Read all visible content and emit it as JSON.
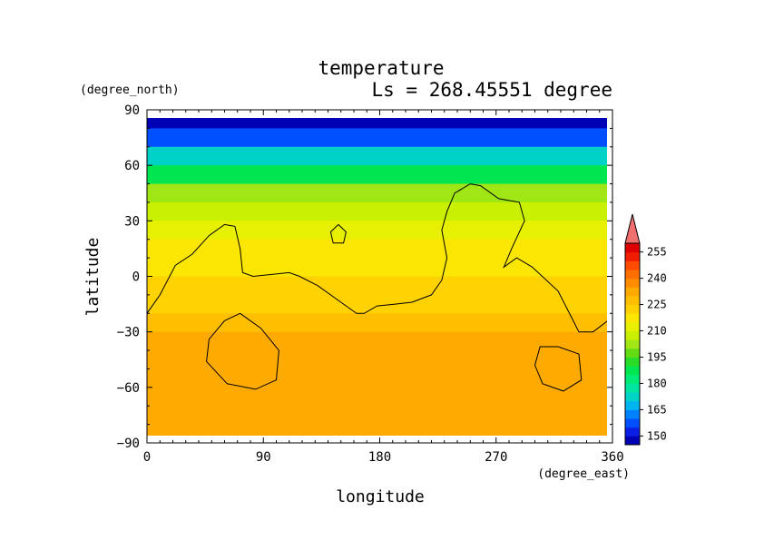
{
  "chart_data": {
    "type": "heatmap",
    "title": "temperature",
    "subtitle": "Ls = 268.45551 degree",
    "xlabel": "longitude",
    "ylabel": "latitude",
    "x_units": "(degree_east)",
    "y_units": "(degree_north)",
    "xlim": [
      0,
      360
    ],
    "ylim": [
      -90,
      90
    ],
    "x_ticks": [
      "0",
      "90",
      "180",
      "270",
      "360"
    ],
    "y_ticks": [
      "90",
      "60",
      "30",
      "0",
      "−30",
      "−60",
      "−90"
    ],
    "x_tick_values": [
      0,
      90,
      180,
      270,
      360
    ],
    "y_tick_values": [
      90,
      60,
      30,
      0,
      -30,
      -60,
      -90
    ],
    "colorbar": {
      "levels": [
        145,
        150,
        155,
        160,
        165,
        170,
        175,
        180,
        185,
        190,
        195,
        200,
        205,
        210,
        215,
        220,
        225,
        230,
        235,
        240,
        245,
        250,
        255,
        260
      ],
      "labels": [
        "150",
        "165",
        "180",
        "195",
        "210",
        "225",
        "240",
        "255"
      ],
      "label_values": [
        150,
        165,
        180,
        195,
        210,
        225,
        240,
        255
      ],
      "colors": [
        "#0000b4",
        "#0a1ee6",
        "#0050ff",
        "#0082ff",
        "#00b4f0",
        "#00d2c8",
        "#00e6a0",
        "#00eb78",
        "#00e650",
        "#28dc28",
        "#64dc14",
        "#a0e614",
        "#c8f000",
        "#e6f000",
        "#fae600",
        "#ffd200",
        "#ffbe00",
        "#ffaa00",
        "#ff8c00",
        "#ff6e00",
        "#ff4b00",
        "#f01e00",
        "#dc0000",
        "#f07070"
      ]
    },
    "zonal_mean_profile": [
      {
        "lat": 85,
        "value": 148
      },
      {
        "lat": 75,
        "value": 155
      },
      {
        "lat": 65,
        "value": 172
      },
      {
        "lat": 55,
        "value": 188
      },
      {
        "lat": 45,
        "value": 200
      },
      {
        "lat": 35,
        "value": 208
      },
      {
        "lat": 25,
        "value": 214
      },
      {
        "lat": 15,
        "value": 217
      },
      {
        "lat": 5,
        "value": 219
      },
      {
        "lat": -5,
        "value": 221
      },
      {
        "lat": -15,
        "value": 224
      },
      {
        "lat": -25,
        "value": 228
      },
      {
        "lat": -35,
        "value": 232
      },
      {
        "lat": -45,
        "value": 234
      },
      {
        "lat": -55,
        "value": 234
      },
      {
        "lat": -65,
        "value": 233
      },
      {
        "lat": -75,
        "value": 232
      },
      {
        "lat": -85,
        "value": 230
      }
    ],
    "contour_220": [
      {
        "name": "main",
        "points": [
          [
            0,
            -20
          ],
          [
            10,
            -10
          ],
          [
            22,
            6
          ],
          [
            35,
            12
          ],
          [
            48,
            22
          ],
          [
            60,
            28
          ],
          [
            68,
            27
          ],
          [
            72,
            15
          ],
          [
            74,
            2
          ],
          [
            82,
            0
          ],
          [
            110,
            2
          ],
          [
            118,
            0
          ],
          [
            132,
            -5
          ],
          [
            152,
            -15
          ],
          [
            162,
            -20
          ],
          [
            168,
            -20
          ],
          [
            178,
            -16
          ],
          [
            192,
            -15
          ],
          [
            205,
            -14
          ],
          [
            220,
            -10
          ],
          [
            228,
            -2
          ],
          [
            232,
            10
          ],
          [
            228,
            25
          ],
          [
            232,
            35
          ],
          [
            238,
            45
          ],
          [
            250,
            50
          ],
          [
            258,
            49
          ],
          [
            272,
            42
          ],
          [
            288,
            40
          ],
          [
            292,
            30
          ],
          [
            282,
            15
          ],
          [
            276,
            5
          ],
          [
            286,
            10
          ],
          [
            298,
            5
          ],
          [
            318,
            -8
          ],
          [
            334,
            -30
          ],
          [
            345,
            -30
          ],
          [
            360,
            -22
          ]
        ]
      },
      {
        "name": "south-ring-west",
        "points": [
          [
            72,
            -20
          ],
          [
            88,
            -28
          ],
          [
            102,
            -40
          ],
          [
            100,
            -56
          ],
          [
            84,
            -61
          ],
          [
            62,
            -58
          ],
          [
            46,
            -46
          ],
          [
            48,
            -34
          ],
          [
            60,
            -24
          ],
          [
            72,
            -20
          ]
        ]
      },
      {
        "name": "south-ring-east",
        "points": [
          [
            318,
            -38
          ],
          [
            334,
            -42
          ],
          [
            336,
            -56
          ],
          [
            322,
            -62
          ],
          [
            306,
            -58
          ],
          [
            300,
            -48
          ],
          [
            304,
            -38
          ],
          [
            318,
            -38
          ]
        ]
      },
      {
        "name": "small-loop",
        "points": [
          [
            148,
            28
          ],
          [
            154,
            24
          ],
          [
            152,
            18
          ],
          [
            144,
            18
          ],
          [
            142,
            24
          ],
          [
            148,
            28
          ]
        ]
      }
    ]
  }
}
